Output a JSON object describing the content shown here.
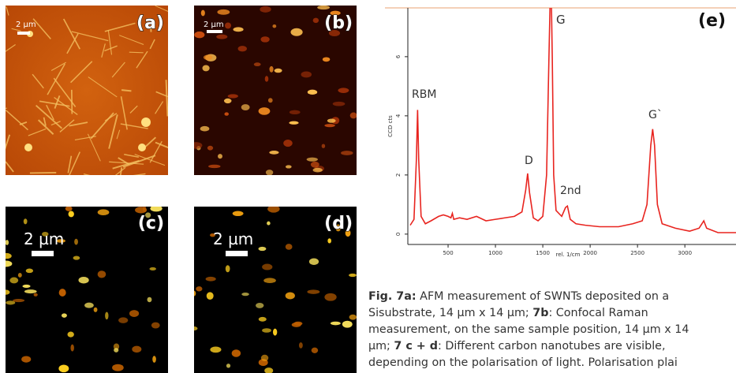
{
  "panels": [
    {
      "label": "(a)",
      "scale": "2 µm"
    },
    {
      "label": "(b)",
      "scale": "2 µm"
    },
    {
      "label": "(c)",
      "scale": "2 µm"
    },
    {
      "label": "(d)",
      "scale": "2 µm"
    }
  ],
  "chart_data": {
    "type": "line",
    "label": "(e)",
    "ylabel": "CCD cts",
    "xlabel": "rel. 1/cm",
    "color": "#e8241f",
    "annotations": [
      "G",
      "RBM",
      "D",
      "2nd",
      "G`"
    ],
    "x": [
      100,
      140,
      165,
      178,
      190,
      215,
      260,
      320,
      400,
      450,
      500,
      530,
      545,
      560,
      620,
      700,
      800,
      900,
      1000,
      1100,
      1200,
      1280,
      1320,
      1340,
      1360,
      1400,
      1450,
      1500,
      1540,
      1565,
      1585,
      1600,
      1615,
      1640,
      1700,
      1740,
      1760,
      1790,
      1850,
      1950,
      2100,
      2300,
      2450,
      2550,
      2600,
      2640,
      2660,
      2680,
      2710,
      2760,
      2900,
      3050,
      3150,
      3200,
      3230,
      3350,
      3540
    ],
    "values": [
      0.3,
      0.5,
      2.5,
      4.2,
      2.5,
      0.6,
      0.35,
      0.45,
      0.6,
      0.65,
      0.6,
      0.55,
      0.7,
      0.5,
      0.55,
      0.5,
      0.6,
      0.45,
      0.5,
      0.55,
      0.6,
      0.75,
      1.5,
      2.05,
      1.4,
      0.55,
      0.45,
      0.6,
      2,
      6,
      9,
      6,
      2,
      0.8,
      0.6,
      0.9,
      0.95,
      0.5,
      0.35,
      0.3,
      0.25,
      0.25,
      0.35,
      0.45,
      1,
      3,
      3.55,
      3,
      1,
      0.35,
      0.2,
      0.1,
      0.2,
      0.45,
      0.2,
      0.05,
      0.05
    ],
    "xlim": [
      75,
      3540
    ],
    "ylim": [
      -0.35,
      7.65
    ],
    "xticks": [
      500,
      1000,
      1500,
      2000,
      2500,
      3000
    ],
    "yticks": [
      0,
      2,
      4,
      6
    ]
  },
  "caption": {
    "lines": [
      [
        "Fig. 7a:",
        " AFM measurement of SWNTs deposited on a"
      ],
      [
        "Sisubstrate, 14 µm x 14 µm; ",
        "7b",
        ": Confocal Raman"
      ],
      [
        "measurement, on the same sample position, 14 µm x 14"
      ],
      [
        "µm; ",
        "7 c + d",
        ": Different carbon nanotubes are visible,"
      ],
      [
        "depending on the polarisation of light. Polarisation plai"
      ]
    ]
  }
}
